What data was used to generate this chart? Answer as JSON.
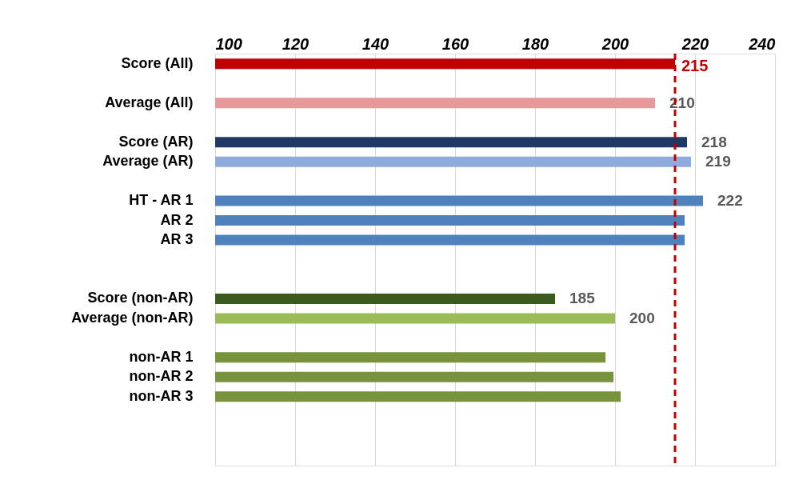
{
  "chart_data": {
    "type": "bar",
    "orientation": "horizontal",
    "categories": [
      "Score (All)",
      null,
      "Average (All)",
      null,
      "Score (AR)",
      "Average (AR)",
      null,
      "HT - AR 1",
      "AR 2",
      "AR 3",
      null,
      null,
      "Score (non-AR)",
      "Average (non-AR)",
      null,
      "non-AR 1",
      "non-AR 2",
      "non-AR 3",
      null,
      null,
      null
    ],
    "values": [
      215,
      null,
      210,
      null,
      218,
      219,
      null,
      222,
      217.4,
      217.4,
      null,
      null,
      185,
      200,
      null,
      197.6,
      199.6,
      201.4,
      null,
      null,
      null
    ],
    "colors": [
      "#c00000",
      "#ffffff",
      "#e6999b",
      "#ffffff",
      "#1f3864",
      "#8faadc",
      "#ffffff",
      "#4f81bd",
      "#4f81bd",
      "#4f81bd",
      "#ffffff",
      "#ffffff",
      "#3a5a1e",
      "#9bbb59",
      "#ffffff",
      "#77933c",
      "#77933c",
      "#77933c",
      "#ffffff",
      "#ffffff",
      "#ffffff"
    ],
    "value_labels": [
      null,
      null,
      "210",
      null,
      "218",
      "219",
      null,
      "222",
      null,
      null,
      null,
      null,
      "185",
      "200",
      null,
      null,
      null,
      null,
      null,
      null,
      null
    ],
    "xlim": [
      100,
      240
    ],
    "xticks": [
      100,
      120,
      140,
      160,
      180,
      200,
      220,
      240
    ],
    "grid": "x",
    "legend": false,
    "ref_lines": [
      {
        "axis": "x",
        "value": 215,
        "label": "215",
        "color": "#c00000",
        "line_style": "dashed"
      }
    ]
  }
}
